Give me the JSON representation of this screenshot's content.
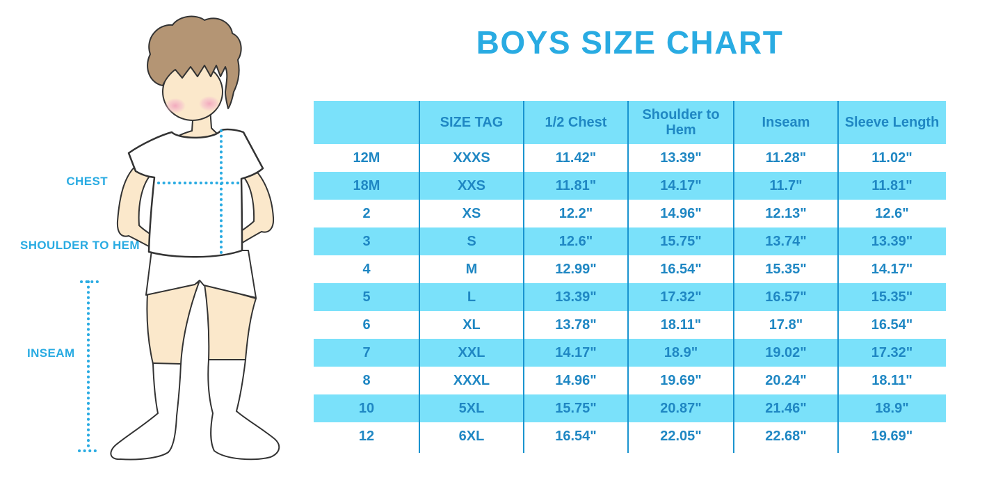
{
  "title": "BOYS SIZE CHART",
  "figure": {
    "labels": {
      "chest": "CHEST",
      "shoulder_to_hem": "SHOULDER TO HEM",
      "inseam": "INSEAM"
    }
  },
  "colors": {
    "accent_blue": "#29ABE2",
    "table_text_blue": "#1F87C3",
    "row_band_blue": "#7AE1FA",
    "divider_blue": "#1993CF",
    "skin": "#FBE8CB",
    "hair": "#B49574",
    "blush": "#F2AFC0",
    "outline": "#333333"
  },
  "chart_data": {
    "type": "table",
    "title": "BOYS SIZE CHART",
    "columns": [
      "",
      "SIZE TAG",
      "1/2 Chest",
      "Shoulder to Hem",
      "Inseam",
      "Sleeve Length"
    ],
    "rows": [
      [
        "12M",
        "XXXS",
        "11.42\"",
        "13.39\"",
        "11.28\"",
        "11.02\""
      ],
      [
        "18M",
        "XXS",
        "11.81\"",
        "14.17\"",
        "11.7\"",
        "11.81\""
      ],
      [
        "2",
        "XS",
        "12.2\"",
        "14.96\"",
        "12.13\"",
        "12.6\""
      ],
      [
        "3",
        "S",
        "12.6\"",
        "15.75\"",
        "13.74\"",
        "13.39\""
      ],
      [
        "4",
        "M",
        "12.99\"",
        "16.54\"",
        "15.35\"",
        "14.17\""
      ],
      [
        "5",
        "L",
        "13.39\"",
        "17.32\"",
        "16.57\"",
        "15.35\""
      ],
      [
        "6",
        "XL",
        "13.78\"",
        "18.11\"",
        "17.8\"",
        "16.54\""
      ],
      [
        "7",
        "XXL",
        "14.17\"",
        "18.9\"",
        "19.02\"",
        "17.32\""
      ],
      [
        "8",
        "XXXL",
        "14.96\"",
        "19.69\"",
        "20.24\"",
        "18.11\""
      ],
      [
        "10",
        "5XL",
        "15.75\"",
        "20.87\"",
        "21.46\"",
        "18.9\""
      ],
      [
        "12",
        "6XL",
        "16.54\"",
        "22.05\"",
        "22.68\"",
        "19.69\""
      ]
    ]
  }
}
